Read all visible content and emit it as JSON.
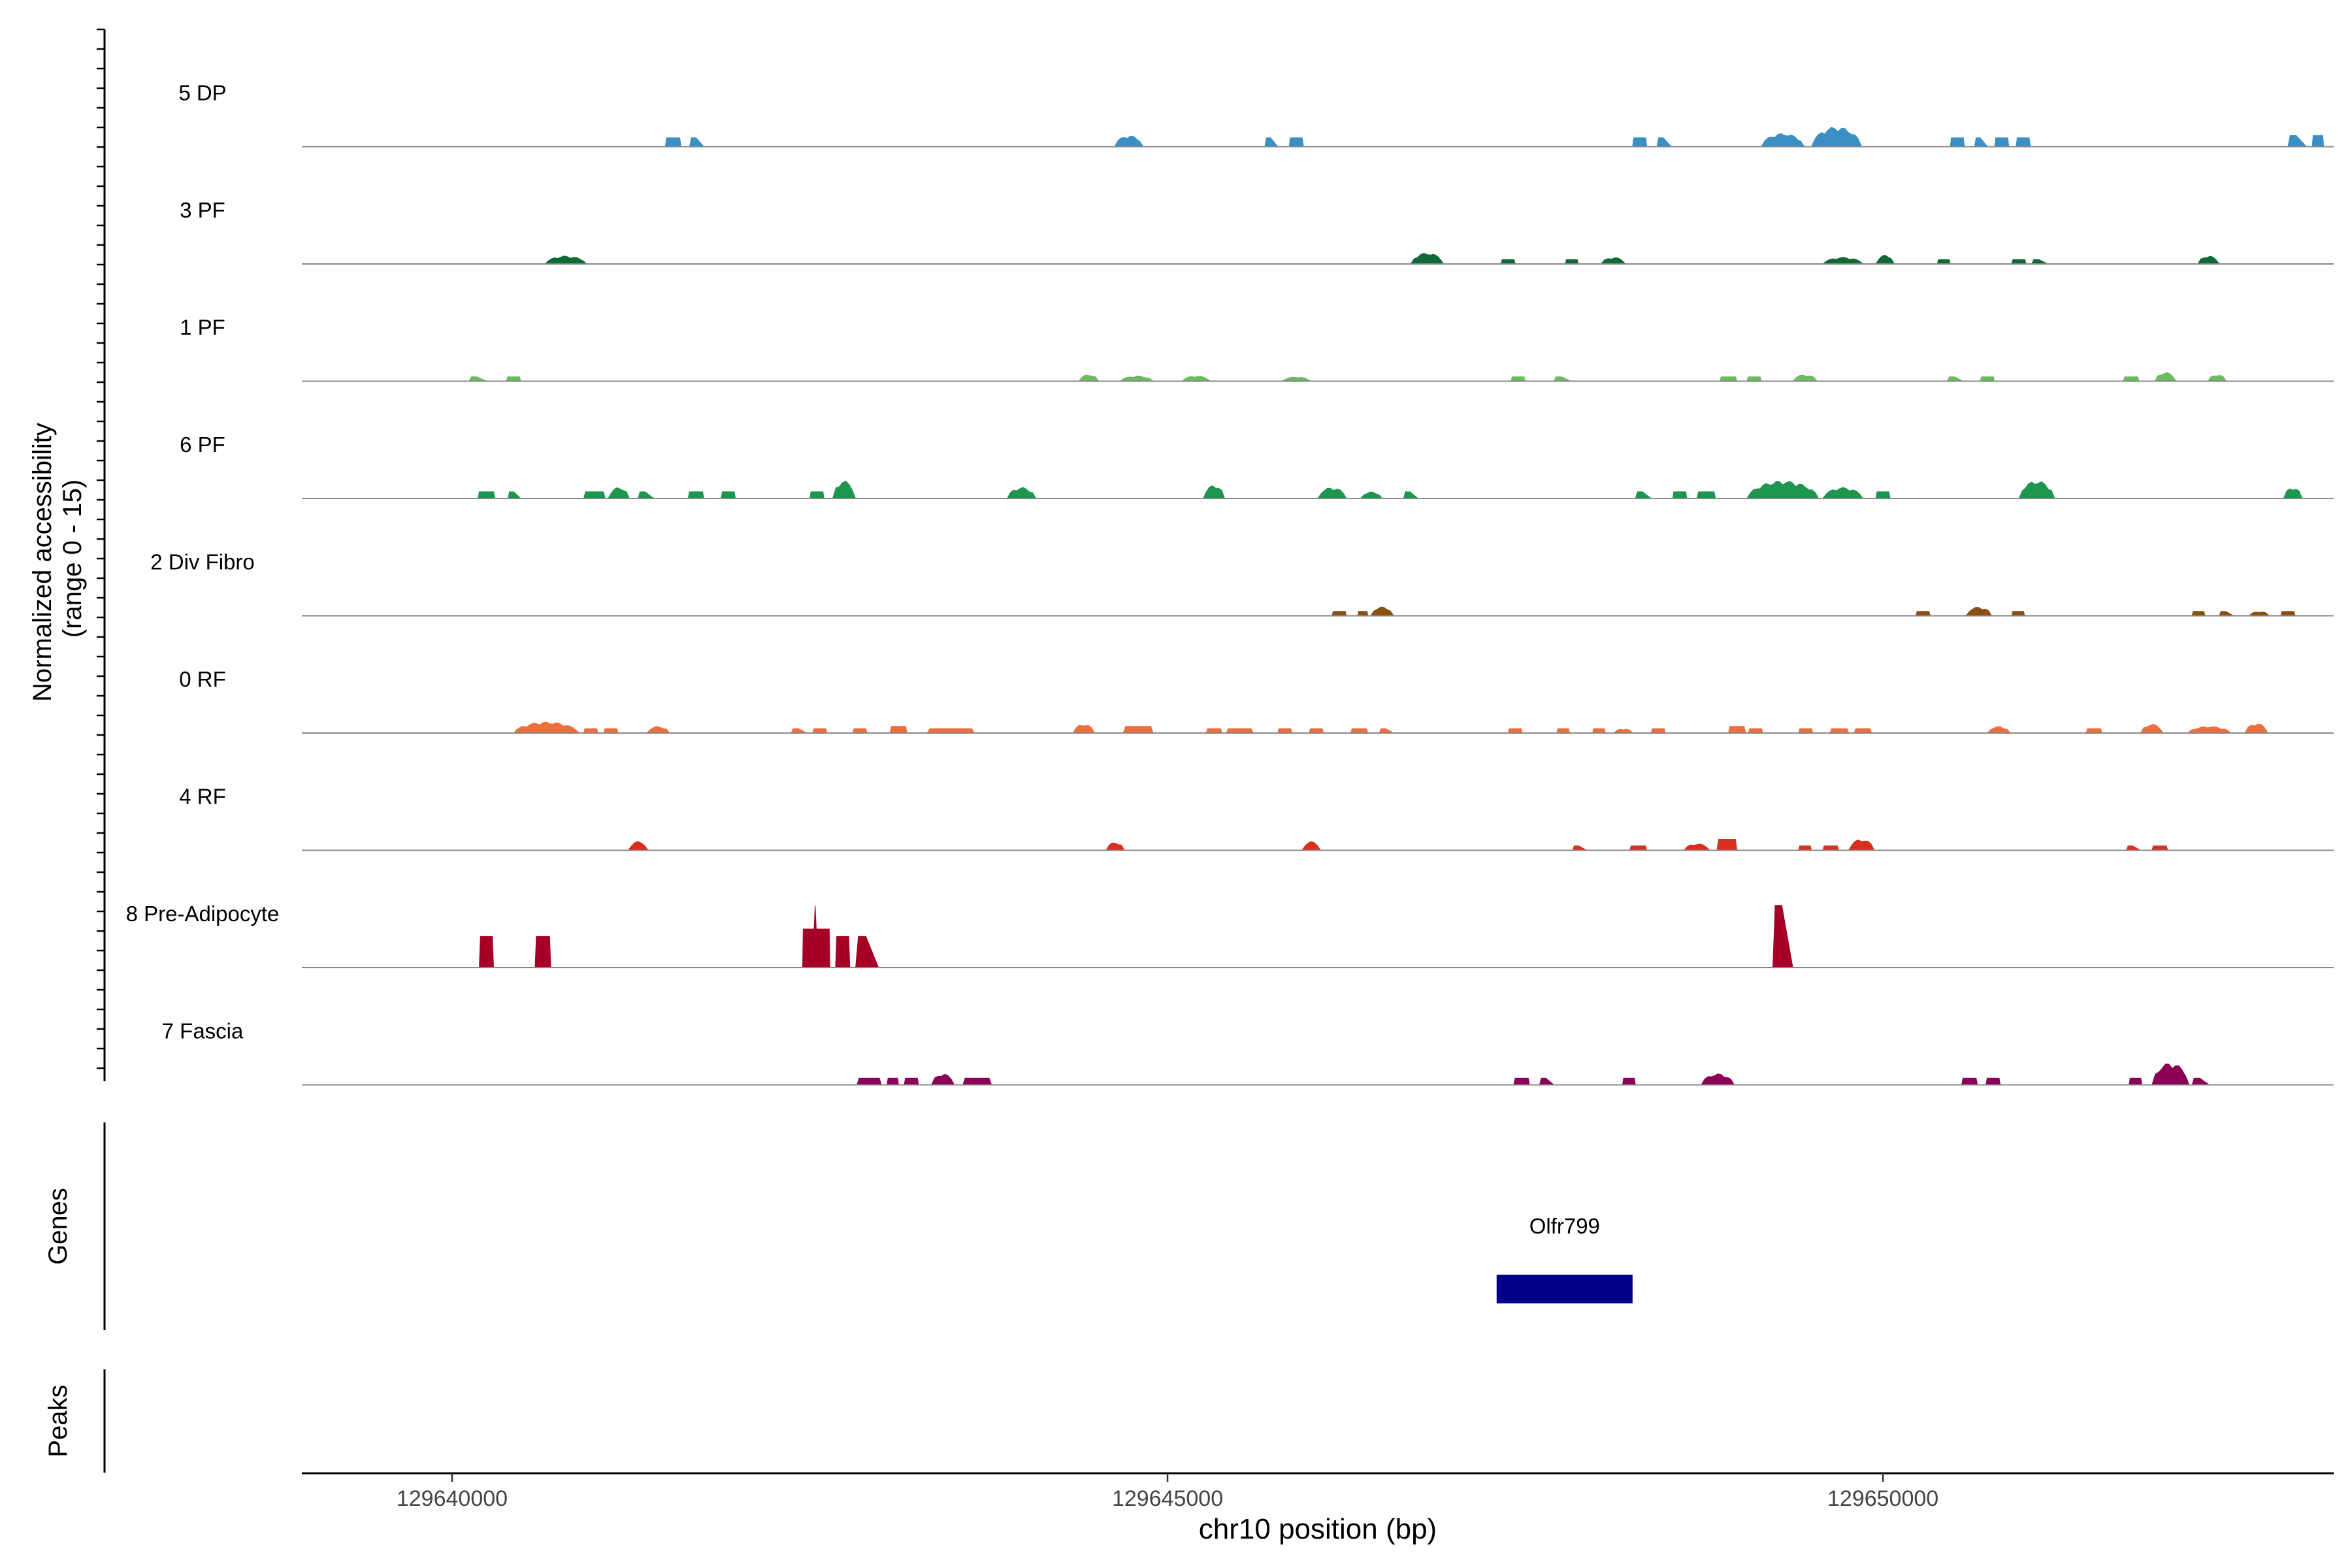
{
  "chart_data": {
    "type": "area",
    "xlabel": "chr10 position (bp)",
    "xlim": [
      129638950,
      129653150
    ],
    "x_ticks": [
      "129640000",
      "129645000",
      "129650000"
    ],
    "coverage_ylabel": [
      "Normalized accessibility",
      "(range 0 - 15)"
    ],
    "ylim": [
      0,
      15
    ],
    "series": [
      {
        "name": "5 DP",
        "color": "#3a8fc4",
        "peaks": [
          [
            129641490,
            129641600,
            2,
            "box"
          ],
          [
            129641660,
            129641760,
            2,
            "tri"
          ],
          [
            129644630,
            129644830,
            2.5,
            "cluster"
          ],
          [
            129645680,
            129645770,
            2,
            "tri"
          ],
          [
            129645850,
            129645950,
            2,
            "box"
          ],
          [
            129648250,
            129648350,
            2,
            "box"
          ],
          [
            129648420,
            129648520,
            2,
            "tri"
          ],
          [
            129649150,
            129649450,
            3,
            "cluster"
          ],
          [
            129649500,
            129649850,
            4.5,
            "cluster"
          ],
          [
            129650470,
            129650570,
            2,
            "box"
          ],
          [
            129650640,
            129650730,
            2,
            "tri"
          ],
          [
            129650780,
            129650880,
            2,
            "box"
          ],
          [
            129650930,
            129651030,
            2,
            "box"
          ],
          [
            129652830,
            129652960,
            2.5,
            "tri"
          ],
          [
            129653000,
            129653080,
            2.5,
            "box"
          ]
        ]
      },
      {
        "name": "3 PF",
        "color": "#0f6b35",
        "peaks": [
          [
            129640650,
            129640940,
            1.8,
            "cluster"
          ],
          [
            129646700,
            129646930,
            2.5,
            "cluster"
          ],
          [
            129647330,
            129647430,
            1,
            "box"
          ],
          [
            129647780,
            129647870,
            1,
            "box"
          ],
          [
            129648030,
            129648200,
            1.5,
            "cluster"
          ],
          [
            129649580,
            129649860,
            1.5,
            "cluster"
          ],
          [
            129649950,
            129650080,
            2,
            "cluster"
          ],
          [
            129650380,
            129650470,
            1,
            "box"
          ],
          [
            129650900,
            129651000,
            1,
            "box"
          ],
          [
            129651040,
            129651150,
            1,
            "tri"
          ],
          [
            129652200,
            129652350,
            1.8,
            "cluster"
          ]
        ]
      },
      {
        "name": "1 PF",
        "color": "#6abc5f",
        "peaks": [
          [
            129640120,
            129640240,
            1,
            "tri"
          ],
          [
            129640380,
            129640480,
            1,
            "box"
          ],
          [
            129644380,
            129644520,
            1.5,
            "cluster"
          ],
          [
            129644670,
            129644900,
            1.2,
            "cluster"
          ],
          [
            129645100,
            129645300,
            1.2,
            "cluster"
          ],
          [
            129645800,
            129646000,
            1,
            "cluster"
          ],
          [
            129647400,
            129647500,
            1,
            "box"
          ],
          [
            129647700,
            129647820,
            1,
            "tri"
          ],
          [
            129648860,
            129648980,
            1,
            "box"
          ],
          [
            129649050,
            129649150,
            1,
            "box"
          ],
          [
            129649370,
            129649540,
            1.5,
            "cluster"
          ],
          [
            129650450,
            129650560,
            1,
            "tri"
          ],
          [
            129650680,
            129650780,
            1,
            "box"
          ],
          [
            129651680,
            129651790,
            1,
            "box"
          ],
          [
            129651900,
            129652050,
            2,
            "cluster"
          ],
          [
            129652270,
            129652400,
            1.5,
            "cluster"
          ]
        ]
      },
      {
        "name": "6 PF",
        "color": "#1f9650",
        "peaks": [
          [
            129640180,
            129640300,
            1.5,
            "box"
          ],
          [
            129640390,
            129640480,
            1.5,
            "tri"
          ],
          [
            129640920,
            129641070,
            1.5,
            "box"
          ],
          [
            129641090,
            129641240,
            2.5,
            "cluster"
          ],
          [
            129641300,
            129641410,
            1.5,
            "tri"
          ],
          [
            129641650,
            129641760,
            1.5,
            "box"
          ],
          [
            129641880,
            129641980,
            1.5,
            "box"
          ],
          [
            129642500,
            129642600,
            1.5,
            "box"
          ],
          [
            129642660,
            129642820,
            4,
            "cluster"
          ],
          [
            129643880,
            129644080,
            2.5,
            "cluster"
          ],
          [
            129645250,
            129645400,
            3,
            "cluster"
          ],
          [
            129646050,
            129646250,
            2.5,
            "cluster"
          ],
          [
            129646350,
            129646500,
            1.5,
            "cluster"
          ],
          [
            129646650,
            129646750,
            1.5,
            "tri"
          ],
          [
            129648270,
            129648380,
            1.5,
            "tri"
          ],
          [
            129648530,
            129648630,
            1.5,
            "box"
          ],
          [
            129648700,
            129648830,
            1.5,
            "box"
          ],
          [
            129649050,
            129649550,
            4,
            "cluster"
          ],
          [
            129649580,
            129649860,
            2.5,
            "cluster"
          ],
          [
            129649950,
            129650050,
            1.5,
            "box"
          ],
          [
            129650950,
            129651200,
            4,
            "cluster"
          ],
          [
            129652800,
            129652930,
            2.5,
            "cluster"
          ]
        ]
      },
      {
        "name": "2 Div Fibro",
        "color": "#8a5012",
        "peaks": [
          [
            129646150,
            129646250,
            1,
            "box"
          ],
          [
            129646330,
            129646400,
            1,
            "box"
          ],
          [
            129646420,
            129646580,
            2,
            "cluster"
          ],
          [
            129650230,
            129650330,
            1,
            "box"
          ],
          [
            129650580,
            129650760,
            2,
            "cluster"
          ],
          [
            129650900,
            129650990,
            1,
            "box"
          ],
          [
            129652160,
            129652250,
            1,
            "box"
          ],
          [
            129652350,
            129652450,
            1,
            "tri"
          ],
          [
            129652560,
            129652700,
            1,
            "cluster"
          ],
          [
            129652780,
            129652880,
            1,
            "box"
          ]
        ]
      },
      {
        "name": "0 RF",
        "color": "#ee6f3e",
        "peaks": [
          [
            129640430,
            129640890,
            2.5,
            "cluster"
          ],
          [
            129640920,
            129641020,
            1,
            "box"
          ],
          [
            129641060,
            129641160,
            1,
            "box"
          ],
          [
            129641360,
            129641520,
            1.5,
            "cluster"
          ],
          [
            129642370,
            129642480,
            1,
            "tri"
          ],
          [
            129642520,
            129642620,
            1,
            "box"
          ],
          [
            129642800,
            129642900,
            1,
            "box"
          ],
          [
            129643060,
            129643180,
            1.5,
            "box"
          ],
          [
            129643320,
            129643650,
            1,
            "box"
          ],
          [
            129644340,
            129644490,
            2,
            "cluster"
          ],
          [
            129644690,
            129644900,
            1.5,
            "box"
          ],
          [
            129645270,
            129645380,
            1,
            "box"
          ],
          [
            129645410,
            129645600,
            1,
            "box"
          ],
          [
            129645770,
            129645870,
            1,
            "box"
          ],
          [
            129645990,
            129646090,
            1,
            "box"
          ],
          [
            129646280,
            129646400,
            1,
            "box"
          ],
          [
            129646480,
            129646580,
            1,
            "tri"
          ],
          [
            129647380,
            129647480,
            1,
            "box"
          ],
          [
            129647720,
            129647810,
            1,
            "box"
          ],
          [
            129647970,
            129648060,
            1,
            "box"
          ],
          [
            129648120,
            129648250,
            1,
            "cluster"
          ],
          [
            129648380,
            129648480,
            1,
            "box"
          ],
          [
            129648920,
            129649040,
            1.5,
            "box"
          ],
          [
            129649060,
            129649160,
            1,
            "box"
          ],
          [
            129649410,
            129649510,
            1,
            "box"
          ],
          [
            129649630,
            129649760,
            1,
            "box"
          ],
          [
            129649800,
            129649920,
            1,
            "box"
          ],
          [
            129650730,
            129650890,
            1.5,
            "cluster"
          ],
          [
            129651420,
            129651530,
            1,
            "box"
          ],
          [
            129651800,
            129651960,
            2,
            "cluster"
          ],
          [
            129652130,
            129652430,
            1.5,
            "cluster"
          ],
          [
            129652530,
            129652690,
            2.2,
            "cluster"
          ]
        ]
      },
      {
        "name": "4 RF",
        "color": "#d7301f",
        "peaks": [
          [
            129641230,
            129641370,
            2,
            "cluster"
          ],
          [
            129644570,
            129644700,
            1.8,
            "cluster"
          ],
          [
            129645940,
            129646070,
            2,
            "cluster"
          ],
          [
            129647830,
            129647930,
            1,
            "tri"
          ],
          [
            129648230,
            129648350,
            1,
            "box"
          ],
          [
            129648610,
            129648790,
            1.5,
            "cluster"
          ],
          [
            129648840,
            129648980,
            2.5,
            "box"
          ],
          [
            129649410,
            129649500,
            1,
            "box"
          ],
          [
            129649580,
            129649690,
            1,
            "box"
          ],
          [
            129649760,
            129649940,
            2.5,
            "cluster"
          ],
          [
            129651700,
            129651800,
            1,
            "tri"
          ],
          [
            129651880,
            129651990,
            1,
            "box"
          ]
        ]
      },
      {
        "name": "8 Pre-Adipocyte",
        "color": "#a50026",
        "peaks": [
          [
            129640190,
            129640290,
            7,
            "box"
          ],
          [
            129640580,
            129640690,
            7,
            "box"
          ],
          [
            129642450,
            129642640,
            14,
            "spike"
          ],
          [
            129642680,
            129642780,
            7,
            "box"
          ],
          [
            129642820,
            129642980,
            7,
            "tri"
          ],
          [
            129649230,
            129649370,
            14,
            "tri"
          ]
        ]
      },
      {
        "name": "7 Fascia",
        "color": "#8b0054",
        "peaks": [
          [
            129642830,
            129643000,
            1.5,
            "box"
          ],
          [
            129643040,
            129643120,
            1.5,
            "box"
          ],
          [
            129643160,
            129643260,
            1.5,
            "box"
          ],
          [
            129643350,
            129643510,
            2.5,
            "cluster"
          ],
          [
            129643570,
            129643770,
            1.5,
            "box"
          ],
          [
            129647420,
            129647530,
            1.5,
            "box"
          ],
          [
            129647600,
            129647700,
            1.5,
            "tri"
          ],
          [
            129648180,
            129648270,
            1.5,
            "box"
          ],
          [
            129648730,
            129648960,
            2.5,
            "cluster"
          ],
          [
            129650550,
            129650660,
            1.5,
            "box"
          ],
          [
            129650720,
            129650820,
            1.5,
            "box"
          ],
          [
            129651720,
            129651810,
            1.5,
            "box"
          ],
          [
            129651880,
            129652140,
            5,
            "cluster"
          ],
          [
            129652160,
            129652280,
            1.5,
            "tri"
          ]
        ]
      }
    ],
    "genes": [
      {
        "name": "Olfr799",
        "start": 129647300,
        "end": 129648250,
        "color": "#00008b"
      }
    ],
    "peaks_track": [],
    "track_labels": {
      "genes": "Genes",
      "peaks": "Peaks"
    }
  }
}
